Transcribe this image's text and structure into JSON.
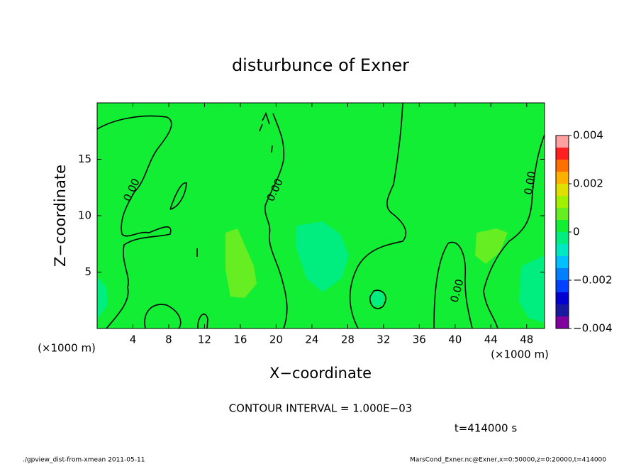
{
  "chart_data": {
    "type": "contour",
    "title": "disturbunce of Exner",
    "xlabel": "X−coordinate",
    "ylabel": "Z−coordinate",
    "x_unit": "(×1000 m)",
    "y_unit": "(×1000 m)",
    "xlim": [
      0,
      50
    ],
    "ylim": [
      0,
      20
    ],
    "xticks": [
      4,
      8,
      12,
      16,
      20,
      24,
      28,
      32,
      36,
      40,
      44,
      48
    ],
    "yticks": [
      5,
      10,
      15
    ],
    "levels": [
      -0.004,
      -0.0035,
      -0.003,
      -0.0025,
      -0.002,
      -0.0015,
      -0.001,
      -0.0005,
      0,
      0.0005,
      0.001,
      0.0015,
      0.002,
      0.0025,
      0.003,
      0.0035,
      0.004
    ],
    "colors": [
      "#8000a0",
      "#1818a0",
      "#0000d0",
      "#0040ff",
      "#0080ff",
      "#00c0ff",
      "#00e8c0",
      "#00ee80",
      "#11ee33",
      "#66ee22",
      "#a0f000",
      "#e0e000",
      "#ffb000",
      "#ff7000",
      "#ff2020",
      "#ffa0a0"
    ],
    "colorbar_ticks": [
      {
        "value": -0.004,
        "label": "−0.004"
      },
      {
        "value": -0.002,
        "label": "−0.002"
      },
      0,
      0.002,
      0.004
    ],
    "contour_labels": [
      "0.00",
      "0.00",
      "0.00",
      "0.00"
    ],
    "contour_interval": "CONTOUR INTERVAL = 1.000E−03",
    "time": "t=414000 s",
    "footer_left": "./gpview_dist-from-xmean  2011-05-11",
    "footer_right": "MarsCond_Exner.nc@Exner,x=0:50000,z=0:20000,t=414000"
  }
}
